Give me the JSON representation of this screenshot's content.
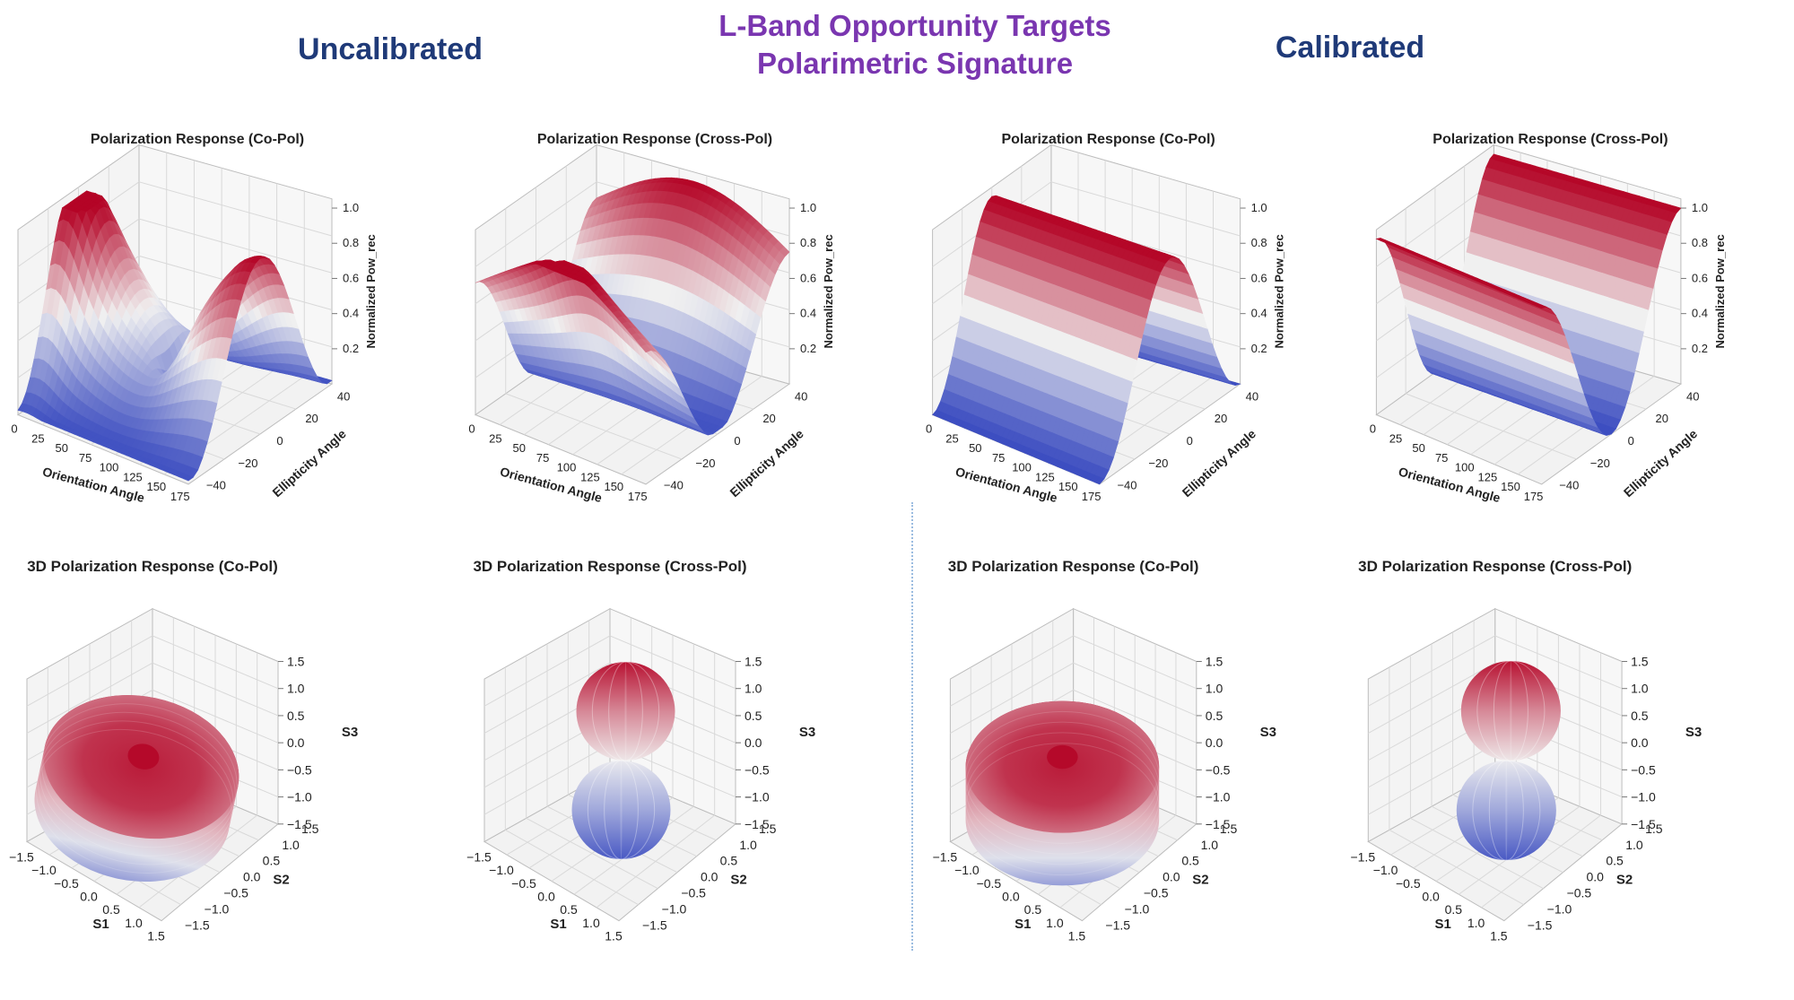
{
  "header": {
    "left": "Uncalibrated",
    "right": "Calibrated",
    "center_line1": "L-Band Opportunity Targets",
    "center_line2": "Polarimetric  Signature"
  },
  "colors": {
    "header_blue": "#1f3a78",
    "header_purple": "#7a36b0",
    "cmap_low": "#3b4cc0",
    "cmap_mid": "#f0f0f0",
    "cmap_high": "#b40426"
  },
  "chart_data": [
    {
      "id": "uncal-copol-surface",
      "type": "surface3d",
      "title": "Polarization Response (Co-Pol)",
      "xlabel": "Orientation Angle",
      "ylabel": "Ellipticity Angle",
      "zlabel": "Normalized Pow_rec",
      "xticks": [
        "0",
        "25",
        "50",
        "75",
        "100",
        "125",
        "150",
        "175"
      ],
      "yticks": [
        "−40",
        "−20",
        "0",
        "20",
        "40"
      ],
      "zticks": [
        "0.2",
        "0.4",
        "0.6",
        "0.8",
        "1.0"
      ],
      "xlim": [
        0,
        180
      ],
      "ylim": [
        -45,
        45
      ],
      "zlim": [
        0,
        1
      ],
      "description": "distorted co-pol response, peak near orientation 0, dip near orientation 90"
    },
    {
      "id": "uncal-xpol-surface",
      "type": "surface3d",
      "title": "Polarization Response (Cross-Pol)",
      "xlabel": "Orientation Angle",
      "ylabel": "Ellipticity Angle",
      "zlabel": "Normalized Pow_rec",
      "xticks": [
        "0",
        "25",
        "50",
        "75",
        "100",
        "125",
        "150",
        "175"
      ],
      "yticks": [
        "−40",
        "−20",
        "0",
        "20",
        "40"
      ],
      "zticks": [
        "0.2",
        "0.4",
        "0.6",
        "0.8",
        "1.0"
      ],
      "xlim": [
        0,
        180
      ],
      "ylim": [
        -45,
        45
      ],
      "zlim": [
        0,
        1
      ],
      "description": "distorted cross-pol response, two ridges at ellipticity extremes"
    },
    {
      "id": "cal-copol-surface",
      "type": "surface3d",
      "title": "Polarization Response (Co-Pol)",
      "xlabel": "Orientation Angle",
      "ylabel": "Ellipticity Angle",
      "zlabel": "Normalized Pow_rec",
      "xticks": [
        "0",
        "25",
        "50",
        "75",
        "100",
        "125",
        "150",
        "175"
      ],
      "yticks": [
        "−40",
        "−20",
        "0",
        "20",
        "40"
      ],
      "zticks": [
        "0.2",
        "0.4",
        "0.6",
        "0.8",
        "1.0"
      ],
      "xlim": [
        0,
        180
      ],
      "ylim": [
        -45,
        45
      ],
      "zlim": [
        0,
        1
      ],
      "description": "smooth co-pol ridge, maximum at ellipticity 0 for all orientations"
    },
    {
      "id": "cal-xpol-surface",
      "type": "surface3d",
      "title": "Polarization Response (Cross-Pol)",
      "xlabel": "Orientation Angle",
      "ylabel": "Ellipticity Angle",
      "zlabel": "Normalized Pow_rec",
      "xticks": [
        "0",
        "25",
        "50",
        "75",
        "100",
        "125",
        "150",
        "175"
      ],
      "yticks": [
        "−40",
        "−20",
        "0",
        "20",
        "40"
      ],
      "zticks": [
        "0.2",
        "0.4",
        "0.6",
        "0.8",
        "1.0"
      ],
      "xlim": [
        0,
        180
      ],
      "ylim": [
        -45,
        45
      ],
      "zlim": [
        0,
        1
      ],
      "description": "smooth cross-pol response, maxima at ellipticity ±45, zero at 0"
    },
    {
      "id": "uncal-copol-3d",
      "type": "shape3d",
      "shape": "distorted torus",
      "title": "3D Polarization Response (Co-Pol)",
      "xlabel": "S1",
      "ylabel": "S2",
      "zlabel": "S3",
      "xticks": [
        "−1.5",
        "−1.0",
        "−0.5",
        "0.0",
        "0.5",
        "1.0",
        "1.5"
      ],
      "yticks": [
        "−1.5",
        "−1.0",
        "−0.5",
        "0.0",
        "0.5",
        "1.0",
        "1.5"
      ],
      "zticks": [
        "−1.5",
        "−1.0",
        "−0.5",
        "0.0",
        "0.5",
        "1.0",
        "1.5"
      ],
      "xlim": [
        -1.5,
        1.5
      ],
      "ylim": [
        -1.5,
        1.5
      ],
      "zlim": [
        -1.5,
        1.5
      ]
    },
    {
      "id": "uncal-xpol-3d",
      "type": "shape3d",
      "shape": "two spheres (lobes along S3)",
      "title": "3D Polarization Response (Cross-Pol)",
      "xlabel": "S1",
      "ylabel": "S2",
      "zlabel": "S3",
      "xticks": [
        "−1.5",
        "−1.0",
        "−0.5",
        "0.0",
        "0.5",
        "1.0",
        "1.5"
      ],
      "yticks": [
        "−1.5",
        "−1.0",
        "−0.5",
        "0.0",
        "0.5",
        "1.0",
        "1.5"
      ],
      "zticks": [
        "−1.5",
        "−1.0",
        "−0.5",
        "0.0",
        "0.5",
        "1.0",
        "1.5"
      ],
      "xlim": [
        -1.5,
        1.5
      ],
      "ylim": [
        -1.5,
        1.5
      ],
      "zlim": [
        -1.5,
        1.5
      ]
    },
    {
      "id": "cal-copol-3d",
      "type": "shape3d",
      "shape": "torus",
      "title": "3D Polarization Response (Co-Pol)",
      "xlabel": "S1",
      "ylabel": "S2",
      "zlabel": "S3",
      "xticks": [
        "−1.5",
        "−1.0",
        "−0.5",
        "0.0",
        "0.5",
        "1.0",
        "1.5"
      ],
      "yticks": [
        "−1.5",
        "−1.0",
        "−0.5",
        "0.0",
        "0.5",
        "1.0",
        "1.5"
      ],
      "zticks": [
        "−1.5",
        "−1.0",
        "−0.5",
        "0.0",
        "0.5",
        "1.0",
        "1.5"
      ],
      "xlim": [
        -1.5,
        1.5
      ],
      "ylim": [
        -1.5,
        1.5
      ],
      "zlim": [
        -1.5,
        1.5
      ]
    },
    {
      "id": "cal-xpol-3d",
      "type": "shape3d",
      "shape": "two spheres (lobes along S3)",
      "title": "3D Polarization Response (Cross-Pol)",
      "xlabel": "S1",
      "ylabel": "S2",
      "zlabel": "S3",
      "xticks": [
        "−1.5",
        "−1.0",
        "−0.5",
        "0.0",
        "0.5",
        "1.0",
        "1.5"
      ],
      "yticks": [
        "−1.5",
        "−1.0",
        "−0.5",
        "0.0",
        "0.5",
        "1.0",
        "1.5"
      ],
      "zticks": [
        "−1.5",
        "−1.0",
        "−0.5",
        "0.0",
        "0.5",
        "1.0",
        "1.5"
      ],
      "xlim": [
        -1.5,
        1.5
      ],
      "ylim": [
        -1.5,
        1.5
      ],
      "zlim": [
        -1.5,
        1.5
      ]
    }
  ]
}
